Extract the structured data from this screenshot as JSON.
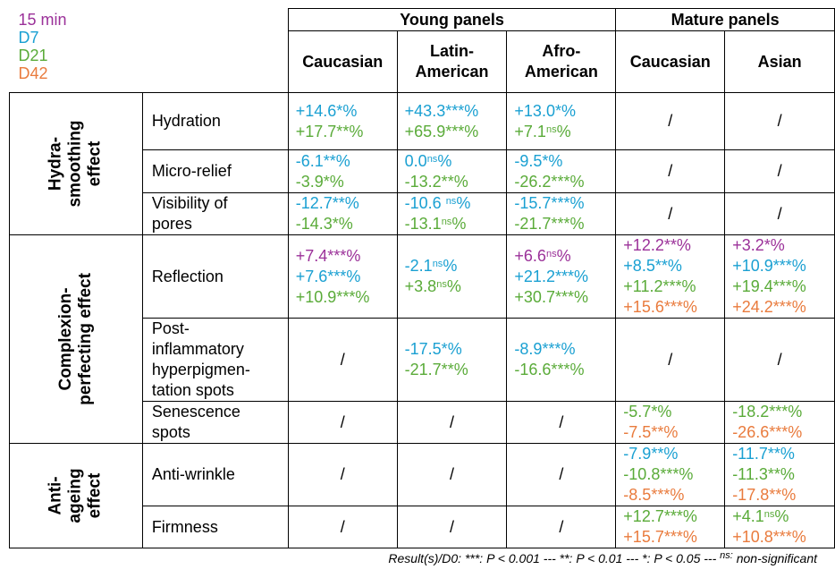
{
  "colors": {
    "15 min": "#9b3199",
    "D7": "#1aa0d2",
    "D21": "#5aab39",
    "D42": "#e97b3d"
  },
  "legend": [
    {
      "label": "15 min",
      "color": "#9b3199"
    },
    {
      "label": "D7",
      "color": "#1aa0d2"
    },
    {
      "label": "D21",
      "color": "#5aab39"
    },
    {
      "label": "D42",
      "color": "#e97b3d"
    }
  ],
  "groups": {
    "young": "Young panels",
    "mature": "Mature panels"
  },
  "columns": [
    "Caucasian",
    "Latin-\nAmerican",
    "Afro-\nAmerican",
    "Caucasian",
    "Asian"
  ],
  "categories": {
    "hydra": "Hydra-\nsmoothing\neffect",
    "complexion": "Complexion-\nperfecting effect",
    "anti": "Anti-\nageing\neffect"
  },
  "rows": [
    {
      "label": "Hydration",
      "cells": [
        [
          [
            "D7",
            "+14.6*%"
          ],
          [
            "D21",
            "+17.7**%"
          ]
        ],
        [
          [
            "D7",
            "+43.3***%"
          ],
          [
            "D21",
            "+65.9***%"
          ]
        ],
        [
          [
            "D7",
            "+13.0*%"
          ],
          [
            "D21",
            "+7.1|ns|%"
          ]
        ],
        "/",
        "/"
      ]
    },
    {
      "label": "Micro-relief",
      "cells": [
        [
          [
            "D7",
            "-6.1**%"
          ],
          [
            "D21",
            "-3.9*%"
          ]
        ],
        [
          [
            "D7",
            "0.0|ns|%"
          ],
          [
            "D21",
            "-13.2**%"
          ]
        ],
        [
          [
            "D7",
            "-9.5*%"
          ],
          [
            "D21",
            "-26.2***%"
          ]
        ],
        "/",
        "/"
      ]
    },
    {
      "label": "Visibility of\npores",
      "cells": [
        [
          [
            "D7",
            "-12.7**%"
          ],
          [
            "D21",
            "-14.3*%"
          ]
        ],
        [
          [
            "D7",
            "-10.6 |ns|%"
          ],
          [
            "D21",
            "-13.1|ns|%"
          ]
        ],
        [
          [
            "D7",
            "-15.7***%"
          ],
          [
            "D21",
            "-21.7***%"
          ]
        ],
        "/",
        "/"
      ]
    },
    {
      "label": "Reflection",
      "cells": [
        [
          [
            "15 min",
            "+7.4***%"
          ],
          [
            "D7",
            "+7.6***%"
          ],
          [
            "D21",
            "+10.9***%"
          ]
        ],
        [
          [
            "D7",
            "-2.1|ns|%"
          ],
          [
            "D21",
            "+3.8|ns|%"
          ]
        ],
        [
          [
            "15 min",
            "+6.6|ns|%"
          ],
          [
            "D7",
            "+21.2***%"
          ],
          [
            "D21",
            "+30.7***%"
          ]
        ],
        [
          [
            "15 min",
            "+12.2**%"
          ],
          [
            "D7",
            "+8.5**%"
          ],
          [
            "D21",
            "+11.2***%"
          ],
          [
            "D42",
            "+15.6***%"
          ]
        ],
        [
          [
            "15 min",
            "+3.2*%"
          ],
          [
            "D7",
            "+10.9***%"
          ],
          [
            "D21",
            "+19.4***%"
          ],
          [
            "D42",
            "+24.2***%"
          ]
        ]
      ]
    },
    {
      "label": "Post-\ninflammatory\nhyperpigmen-\ntation spots",
      "cells": [
        "/",
        [
          [
            "D7",
            "-17.5*%"
          ],
          [
            "D21",
            "-21.7**%"
          ]
        ],
        [
          [
            "D7",
            "-8.9***%"
          ],
          [
            "D21",
            "-16.6***%"
          ]
        ],
        "/",
        "/"
      ]
    },
    {
      "label": "Senescence\nspots",
      "cells": [
        "/",
        "/",
        "/",
        [
          [
            "D21",
            "-5.7*%"
          ],
          [
            "D42",
            "-7.5**%"
          ]
        ],
        [
          [
            "D21",
            "-18.2***%"
          ],
          [
            "D42",
            "-26.6***%"
          ]
        ]
      ]
    },
    {
      "label": "Anti-wrinkle",
      "cells": [
        "/",
        "/",
        "/",
        [
          [
            "D7",
            "-7.9**%"
          ],
          [
            "D21",
            "-10.8***%"
          ],
          [
            "D42",
            "-8.5***%"
          ]
        ],
        [
          [
            "D7",
            "-11.7**%"
          ],
          [
            "D21",
            "-11.3**%"
          ],
          [
            "D42",
            "-17.8**%"
          ]
        ]
      ]
    },
    {
      "label": "Firmness",
      "cells": [
        "/",
        "/",
        "/",
        [
          [
            "D21",
            "+12.7***%"
          ],
          [
            "D42",
            "+15.7***%"
          ]
        ],
        [
          [
            "D21",
            "+4.1|ns|%"
          ],
          [
            "D42",
            "+10.8***%"
          ]
        ]
      ]
    }
  ],
  "footnote": {
    "prefix": "Result(s)/D0: ***: P < 0.001 --- **: P < 0.01 --- *: P < 0.05 --- ",
    "ns_sup": "ns:",
    "suffix": " non-significant"
  }
}
